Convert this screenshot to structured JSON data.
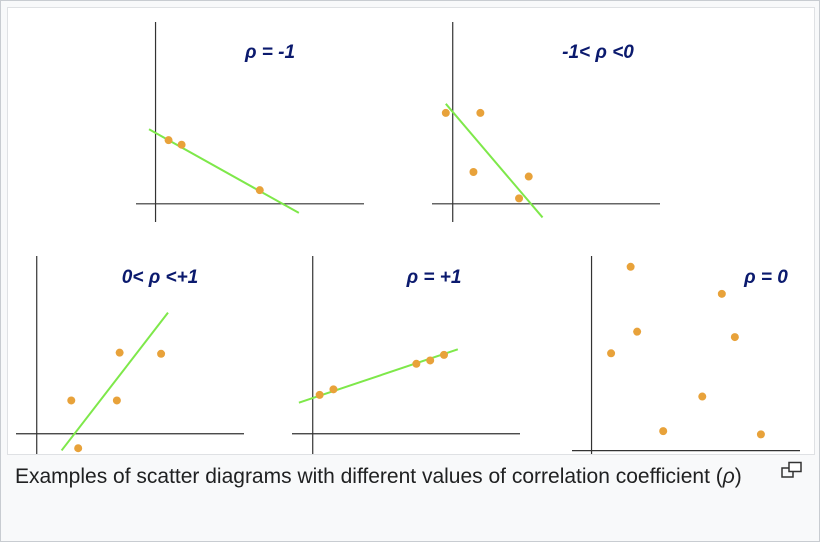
{
  "caption": {
    "text_before": "Examples of scatter diagrams with different values of correlation coefficient (",
    "symbol": "ρ",
    "text_after": ")"
  },
  "icons": {
    "enlarge": "magnify-clip-icon"
  },
  "colors": {
    "point": "#e8a23a",
    "line": "#7ee84a",
    "axis": "#333333",
    "title": "#0b1a6e"
  },
  "chart_data": [
    {
      "type": "scatter",
      "title": "ρ = -1",
      "points": [
        [
          1.0,
          7.0
        ],
        [
          2.0,
          6.5
        ],
        [
          8.0,
          1.5
        ]
      ],
      "fit_line": [
        [
          -0.5,
          8.2
        ],
        [
          11.0,
          -1.0
        ]
      ],
      "xlim": [
        -1.5,
        16
      ],
      "ylim": [
        -2,
        20
      ],
      "grid": false,
      "legend": "none"
    },
    {
      "type": "scatter",
      "title": "-1< ρ <0",
      "points": [
        [
          -0.5,
          10.0
        ],
        [
          2.0,
          10.0
        ],
        [
          1.5,
          3.5
        ],
        [
          5.5,
          3.0
        ],
        [
          4.8,
          0.6
        ]
      ],
      "fit_line": [
        [
          -0.5,
          11.0
        ],
        [
          6.5,
          -1.5
        ]
      ],
      "xlim": [
        -1.5,
        15
      ],
      "ylim": [
        -2,
        20
      ],
      "grid": false,
      "legend": "none"
    },
    {
      "type": "scatter",
      "title": "0< ρ <+1",
      "points": [
        [
          2.5,
          3.0
        ],
        [
          6.0,
          7.3
        ],
        [
          5.8,
          3.0
        ],
        [
          9.0,
          7.2
        ],
        [
          3.0,
          -1.3
        ]
      ],
      "fit_line": [
        [
          1.8,
          -1.5
        ],
        [
          9.5,
          10.9
        ]
      ],
      "xlim": [
        -1.5,
        15
      ],
      "ylim": [
        -2,
        16
      ],
      "grid": false,
      "legend": "none"
    },
    {
      "type": "scatter",
      "title": "ρ = +1",
      "points": [
        [
          0.5,
          3.5
        ],
        [
          1.5,
          4.0
        ],
        [
          7.5,
          6.3
        ],
        [
          8.5,
          6.6
        ],
        [
          9.5,
          7.1
        ]
      ],
      "fit_line": [
        [
          -1.0,
          2.8
        ],
        [
          10.5,
          7.6
        ]
      ],
      "xlim": [
        -1.5,
        15
      ],
      "ylim": [
        -2,
        16
      ],
      "grid": false,
      "legend": "none"
    },
    {
      "type": "scatter",
      "title": "ρ = 0",
      "points": [
        [
          3.0,
          17.0
        ],
        [
          10.0,
          14.5
        ],
        [
          3.5,
          11.0
        ],
        [
          1.5,
          9.0
        ],
        [
          11.0,
          10.5
        ],
        [
          8.5,
          5.0
        ],
        [
          5.5,
          1.8
        ],
        [
          13.0,
          1.5
        ]
      ],
      "xlim": [
        -1.5,
        16
      ],
      "ylim": [
        -0.5,
        18
      ],
      "grid": false,
      "legend": "none"
    }
  ]
}
